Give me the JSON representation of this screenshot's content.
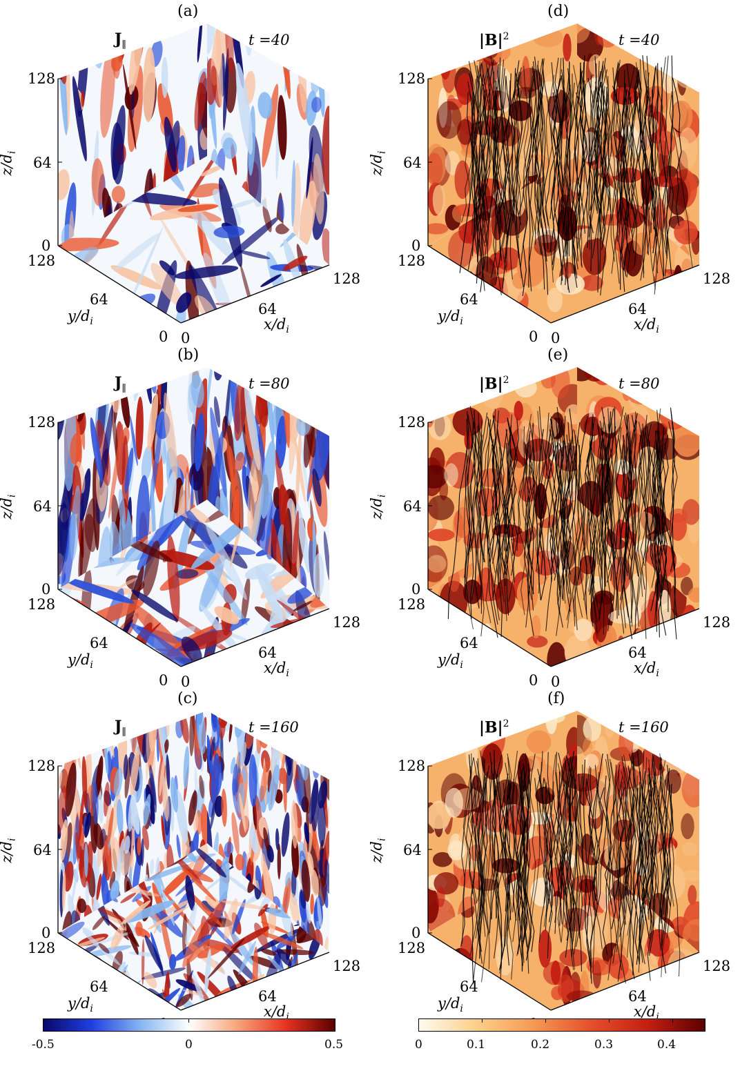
{
  "panels": [
    {
      "letter": "(a)",
      "quantity": "J",
      "sub": "∥",
      "sup": "",
      "time": "t =40",
      "field": "current",
      "t": 40,
      "lines": false
    },
    {
      "letter": "(d)",
      "quantity": "|B|",
      "sub": "",
      "sup": "2",
      "time": "t =40",
      "field": "energy",
      "t": 40,
      "lines": true
    },
    {
      "letter": "(b)",
      "quantity": "J",
      "sub": "∥",
      "sup": "",
      "time": "t =80",
      "field": "current",
      "t": 80,
      "lines": false
    },
    {
      "letter": "(e)",
      "quantity": "|B|",
      "sub": "",
      "sup": "2",
      "time": "t =80",
      "field": "energy",
      "t": 80,
      "lines": true
    },
    {
      "letter": "(c)",
      "quantity": "J",
      "sub": "∥",
      "sup": "",
      "time": "t =160",
      "field": "current",
      "t": 160,
      "lines": false
    },
    {
      "letter": "(f)",
      "quantity": "|B|",
      "sub": "",
      "sup": "2",
      "time": "t =160",
      "field": "energy",
      "t": 160,
      "lines": true
    }
  ],
  "axes": {
    "z_label": "z/d",
    "y_label": "y/d",
    "x_label": "x/d",
    "label_subscript": "i",
    "z_ticks": [
      "0",
      "64",
      "128"
    ],
    "y_ticks": [
      "0",
      "64",
      "128"
    ],
    "x_ticks": [
      "0",
      "64",
      "128"
    ]
  },
  "colorbars": {
    "current": {
      "ticks": [
        "-0.5",
        "0",
        "0.5"
      ],
      "range": [
        -0.5,
        0.5
      ],
      "colors": [
        "#08086b",
        "#2040e0",
        "#86b6f0",
        "#ffffff",
        "#f6a47a",
        "#e63320",
        "#5a0000"
      ]
    },
    "energy": {
      "ticks": [
        "0",
        "0.1",
        "0.2",
        "0.3",
        "0.4"
      ],
      "range": [
        0,
        0.45
      ],
      "colors": [
        "#fffaf0",
        "#fbd08a",
        "#f59a54",
        "#e5502c",
        "#c41f13",
        "#5b0000"
      ]
    }
  },
  "fieldlines_color": "#000000"
}
